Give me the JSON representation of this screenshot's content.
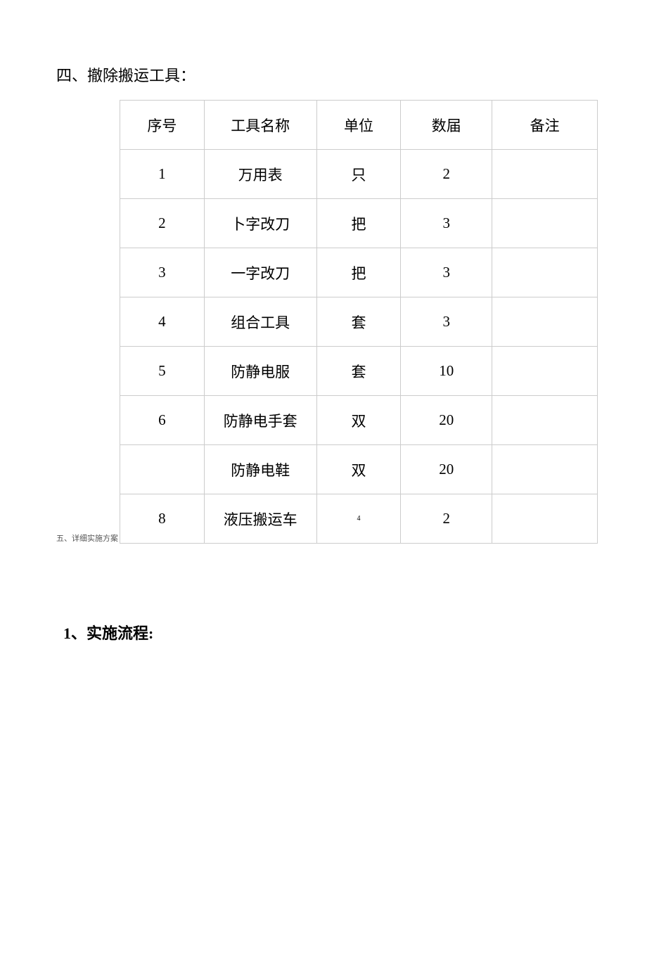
{
  "section_title": "四、撤除搬运工具：",
  "columns": {
    "seq": "序号",
    "name": "工具名称",
    "unit": "单位",
    "qty": "数届",
    "note": "备注"
  },
  "rows": [
    {
      "seq": "1",
      "name": "万用表",
      "unit": "只",
      "qty": "2",
      "note": ""
    },
    {
      "seq": "2",
      "name": "卜字改刀",
      "unit": "把",
      "qty": "3",
      "note": ""
    },
    {
      "seq": "3",
      "name": "一字改刀",
      "unit": "把",
      "qty": "3",
      "note": ""
    },
    {
      "seq": "4",
      "name": "组合工具",
      "unit": "套",
      "qty": "3",
      "note": ""
    },
    {
      "seq": "5",
      "name": "防静电服",
      "unit": "套",
      "qty": "10",
      "note": ""
    },
    {
      "seq": "6",
      "name": "防静电手套",
      "unit": "双",
      "qty": "20",
      "note": ""
    },
    {
      "seq": "",
      "name": "防静电鞋",
      "unit": "双",
      "qty": "20",
      "note": ""
    },
    {
      "seq": "8",
      "name": "液压搬运车",
      "unit": "4",
      "qty": "2",
      "note": "",
      "small_unit": true
    }
  ],
  "annotation": "五、详细实施方案",
  "sub_heading": "1、实施流程:",
  "colors": {
    "text": "#000000",
    "border": "#cccccc",
    "background": "#ffffff",
    "annotation": "#555555"
  },
  "font_sizes": {
    "heading": 22,
    "table_cell": 21,
    "annotation": 11,
    "small_unit": 10,
    "sub_heading": 22
  }
}
